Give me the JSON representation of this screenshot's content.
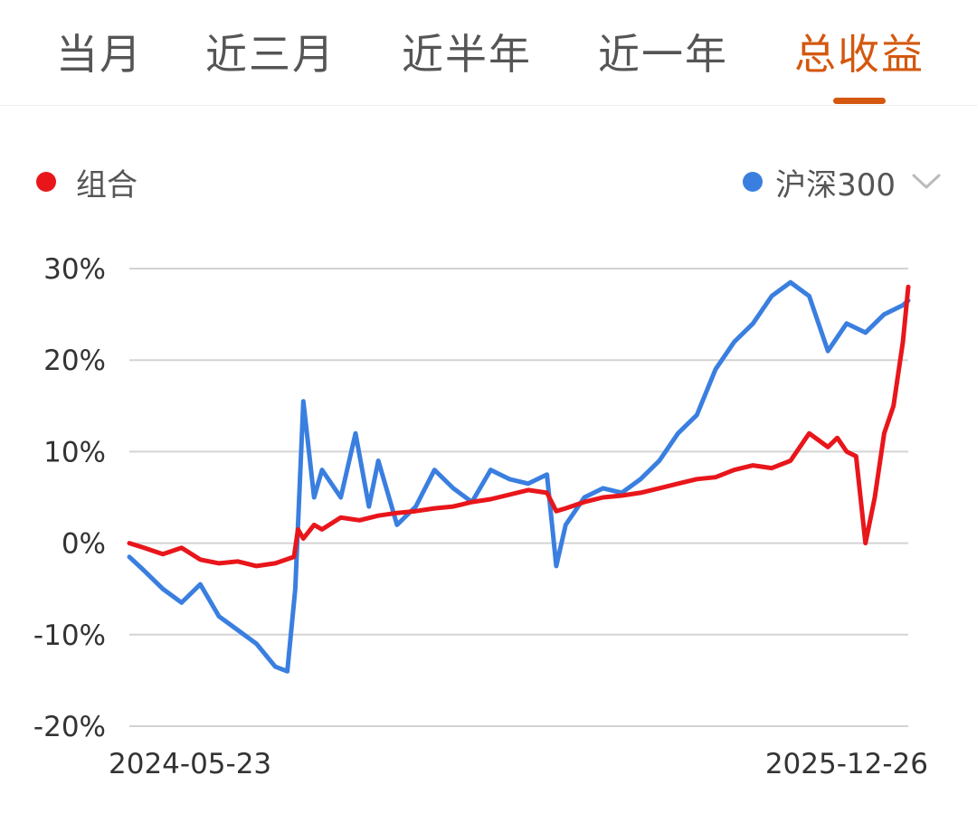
{
  "tabs": [
    {
      "label": "当月",
      "active": false
    },
    {
      "label": "近三月",
      "active": false
    },
    {
      "label": "近半年",
      "active": false
    },
    {
      "label": "近一年",
      "active": false
    },
    {
      "label": "总收益",
      "active": true
    }
  ],
  "colors": {
    "accent": "#d4580f",
    "portfolio": "#e8161b",
    "benchmark": "#3a7fe0"
  },
  "legend": {
    "portfolio": {
      "label": "组合",
      "color": "#e8161b"
    },
    "benchmark": {
      "label": "沪深300",
      "color": "#3a7fe0",
      "icon": "chevron-down-icon"
    }
  },
  "chart_data": {
    "type": "line",
    "title": "",
    "xlabel": "",
    "ylabel": "",
    "x_range": [
      "2024-05-23",
      "2025-12-26"
    ],
    "xtick_labels": [
      "2024-05-23",
      "2025-12-26"
    ],
    "ylim": [
      -20,
      30
    ],
    "yticks": [
      30,
      20,
      10,
      0,
      -10,
      -20
    ],
    "ytick_labels": [
      "30%",
      "20%",
      "10%",
      "0%",
      "-10%",
      "-20%"
    ],
    "grid": true,
    "legend_placement": "top",
    "series": [
      {
        "name": "组合",
        "color": "#e8161b",
        "x": [
          "2024-05-23",
          "2024-06-03",
          "2024-06-17",
          "2024-07-01",
          "2024-07-15",
          "2024-07-29",
          "2024-08-12",
          "2024-08-26",
          "2024-09-09",
          "2024-09-23",
          "2024-09-26",
          "2024-09-30",
          "2024-10-08",
          "2024-10-14",
          "2024-10-28",
          "2024-11-11",
          "2024-11-25",
          "2024-12-09",
          "2024-12-23",
          "2025-01-06",
          "2025-01-20",
          "2025-02-03",
          "2025-02-17",
          "2025-03-03",
          "2025-03-17",
          "2025-03-31",
          "2025-04-07",
          "2025-04-14",
          "2025-04-28",
          "2025-05-12",
          "2025-05-26",
          "2025-06-09",
          "2025-06-23",
          "2025-07-07",
          "2025-07-21",
          "2025-08-04",
          "2025-08-18",
          "2025-09-01",
          "2025-09-15",
          "2025-09-29",
          "2025-10-13",
          "2025-10-27",
          "2025-11-03",
          "2025-11-10",
          "2025-11-17",
          "2025-11-24",
          "2025-12-01",
          "2025-12-08",
          "2025-12-15",
          "2025-12-22",
          "2025-12-26"
        ],
        "values": [
          0.0,
          -0.5,
          -1.2,
          -0.5,
          -1.8,
          -2.2,
          -2.0,
          -2.5,
          -2.2,
          -1.5,
          1.5,
          0.5,
          2.0,
          1.5,
          2.8,
          2.5,
          3.0,
          3.3,
          3.5,
          3.8,
          4.0,
          4.5,
          4.8,
          5.3,
          5.8,
          5.5,
          3.5,
          3.8,
          4.5,
          5.0,
          5.2,
          5.5,
          6.0,
          6.5,
          7.0,
          7.2,
          8.0,
          8.5,
          8.2,
          9.0,
          12.0,
          10.5,
          11.5,
          10.0,
          9.5,
          0.0,
          5.0,
          12.0,
          15.0,
          22.0,
          28.0
        ]
      },
      {
        "name": "沪深300",
        "color": "#3a7fe0",
        "x": [
          "2024-05-23",
          "2024-06-03",
          "2024-06-17",
          "2024-07-01",
          "2024-07-15",
          "2024-07-29",
          "2024-08-12",
          "2024-08-26",
          "2024-09-09",
          "2024-09-18",
          "2024-09-24",
          "2024-09-30",
          "2024-10-08",
          "2024-10-14",
          "2024-10-28",
          "2024-11-08",
          "2024-11-18",
          "2024-11-25",
          "2024-12-09",
          "2024-12-23",
          "2025-01-06",
          "2025-01-20",
          "2025-02-03",
          "2025-02-17",
          "2025-03-03",
          "2025-03-17",
          "2025-03-31",
          "2025-04-07",
          "2025-04-14",
          "2025-04-28",
          "2025-05-12",
          "2025-05-26",
          "2025-06-09",
          "2025-06-23",
          "2025-07-07",
          "2025-07-21",
          "2025-08-04",
          "2025-08-18",
          "2025-09-01",
          "2025-09-15",
          "2025-09-29",
          "2025-10-13",
          "2025-10-27",
          "2025-11-10",
          "2025-11-24",
          "2025-12-08",
          "2025-12-22",
          "2025-12-26"
        ],
        "values": [
          -1.5,
          -3.0,
          -5.0,
          -6.5,
          -4.5,
          -8.0,
          -9.5,
          -11.0,
          -13.5,
          -14.0,
          -5.0,
          15.5,
          5.0,
          8.0,
          5.0,
          12.0,
          4.0,
          9.0,
          2.0,
          4.0,
          8.0,
          6.0,
          4.5,
          8.0,
          7.0,
          6.5,
          7.5,
          -2.5,
          2.0,
          5.0,
          6.0,
          5.5,
          7.0,
          9.0,
          12.0,
          14.0,
          19.0,
          22.0,
          24.0,
          27.0,
          28.5,
          27.0,
          21.0,
          24.0,
          23.0,
          25.0,
          26.0,
          26.5
        ]
      }
    ]
  }
}
